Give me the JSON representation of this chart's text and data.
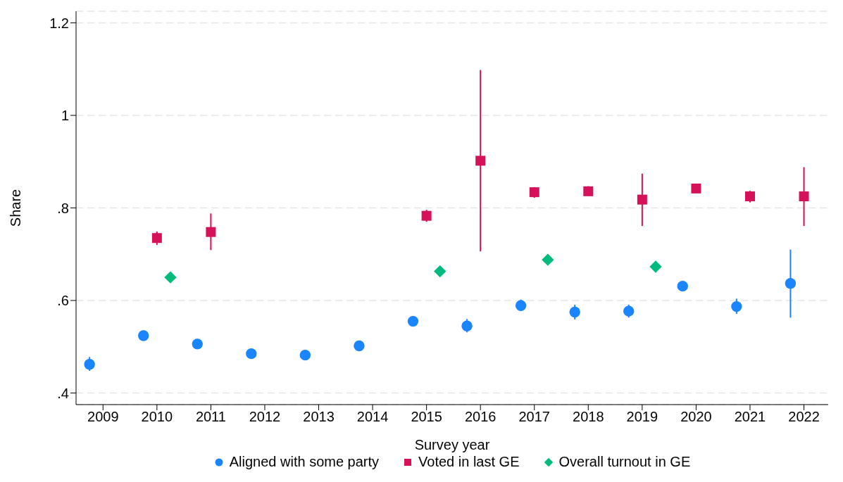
{
  "chart_data": {
    "type": "scatter",
    "xlabel": "Survey year",
    "ylabel": "Share",
    "xlim": [
      2008.5,
      2022.45
    ],
    "xticks": [
      2009,
      2010,
      2011,
      2012,
      2013,
      2014,
      2015,
      2016,
      2017,
      2018,
      2019,
      2020,
      2021,
      2022
    ],
    "ylim": [
      0.375,
      1.225
    ],
    "yticks": [
      {
        "value": 0.4,
        "label": ".4"
      },
      {
        "value": 0.6,
        "label": ".6"
      },
      {
        "value": 0.8,
        "label": ".8"
      },
      1,
      1.2
    ],
    "grid": "y",
    "legend": "bottom",
    "series": [
      {
        "name": "Aligned with some party",
        "color": "#1a85ff",
        "marker": "circle",
        "x": [
          2008.75,
          2009.75,
          2010.75,
          2011.75,
          2012.75,
          2013.75,
          2014.75,
          2015.75,
          2016.75,
          2017.75,
          2018.75,
          2019.75,
          2020.75,
          2021.75
        ],
        "values": [
          0.462,
          0.524,
          0.506,
          0.485,
          0.482,
          0.502,
          0.555,
          0.545,
          0.589,
          0.575,
          0.577,
          0.631,
          0.587,
          0.637
        ],
        "errors": [
          [
            0.448,
            0.478
          ],
          null,
          null,
          null,
          null,
          null,
          null,
          [
            0.531,
            0.56
          ],
          [
            0.577,
            0.602
          ],
          [
            0.559,
            0.591
          ],
          [
            0.563,
            0.591
          ],
          [
            0.621,
            0.641
          ],
          [
            0.571,
            0.604
          ],
          [
            0.563,
            0.71
          ]
        ]
      },
      {
        "name": "Voted in last GE",
        "color": "#d41159",
        "marker": "square",
        "x": [
          2010,
          2011,
          2015,
          2016,
          2017,
          2018,
          2019,
          2020,
          2021,
          2022
        ],
        "values": [
          0.735,
          0.748,
          0.783,
          0.902,
          0.834,
          0.836,
          0.818,
          0.842,
          0.825,
          0.825
        ],
        "errors": [
          [
            0.72,
            0.749
          ],
          [
            0.709,
            0.788
          ],
          [
            0.77,
            0.796
          ],
          [
            0.706,
            1.098
          ],
          [
            0.822,
            0.845
          ],
          [
            0.826,
            0.847
          ],
          [
            0.761,
            0.874
          ],
          null,
          [
            0.812,
            0.837
          ],
          [
            0.761,
            0.888
          ]
        ]
      },
      {
        "name": "Overall turnout in GE",
        "color": "#00bb7d",
        "marker": "diamond",
        "x": [
          2010.25,
          2015.25,
          2017.25,
          2019.25
        ],
        "values": [
          0.65,
          0.663,
          0.688,
          0.673
        ]
      }
    ]
  }
}
